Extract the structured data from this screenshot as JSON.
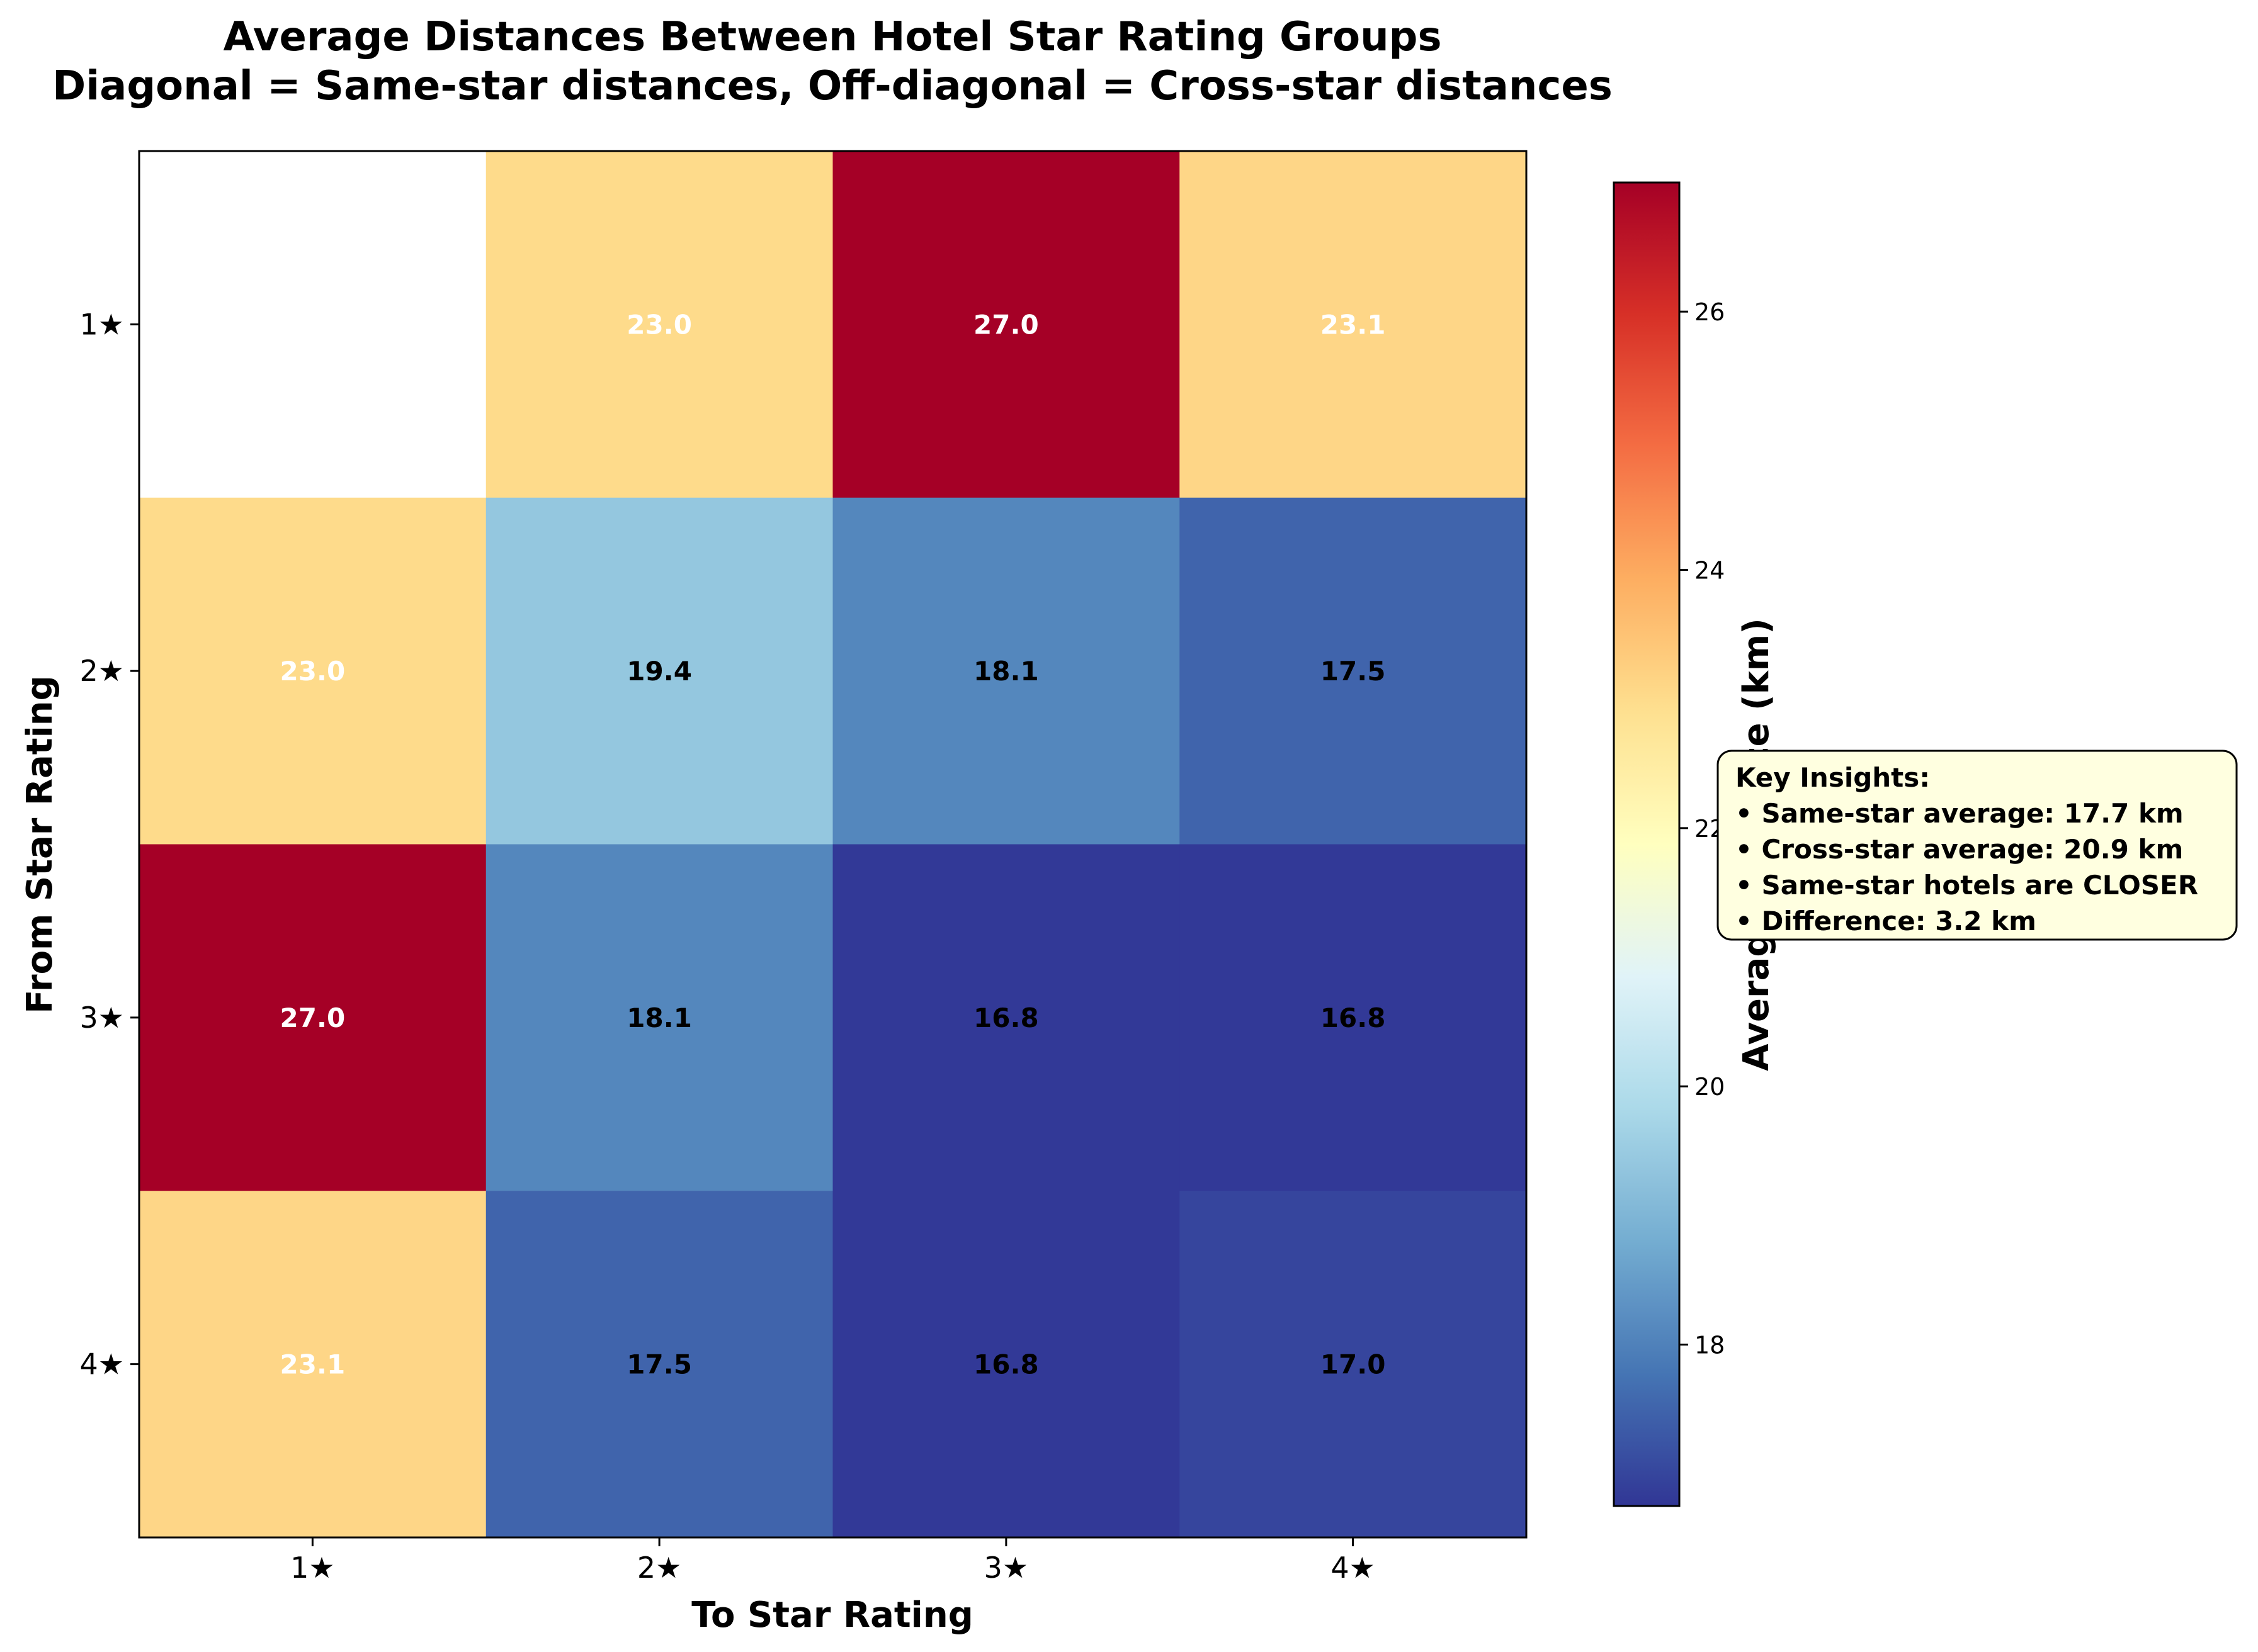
{
  "chart_data": {
    "type": "heatmap",
    "title_line1": "Average Distances Between Hotel Star Rating Groups",
    "title_line2": "Diagonal = Same-star distances, Off-diagonal = Cross-star distances",
    "xlabel": "To Star Rating",
    "ylabel": "From Star Rating",
    "x_categories": [
      "1★",
      "2★",
      "3★",
      "4★"
    ],
    "y_categories": [
      "1★",
      "2★",
      "3★",
      "4★"
    ],
    "values": [
      [
        null,
        23.0,
        27.0,
        23.1
      ],
      [
        23.0,
        19.4,
        18.1,
        17.5
      ],
      [
        27.0,
        18.1,
        16.8,
        16.8
      ],
      [
        23.1,
        17.5,
        16.8,
        17.0
      ]
    ],
    "value_labels": [
      [
        "",
        "23.0",
        "27.0",
        "23.1"
      ],
      [
        "23.0",
        "19.4",
        "18.1",
        "17.5"
      ],
      [
        "27.0",
        "18.1",
        "16.8",
        "16.8"
      ],
      [
        "23.1",
        "17.5",
        "16.8",
        "17.0"
      ]
    ],
    "colormap": "RdYlBu_r",
    "vmin": 16.75,
    "vmax": 27.0,
    "colorbar": {
      "label": "Average Distance (km)",
      "ticks": [
        18,
        20,
        22,
        24,
        26
      ],
      "tick_labels": [
        "18",
        "20",
        "22",
        "24",
        "26"
      ]
    },
    "annotation": {
      "lines": [
        "Key Insights:",
        "• Same-star average: 17.7 km",
        "• Cross-star average: 20.9 km",
        "• Same-star hotels are CLOSER",
        "• Difference: 3.2 km"
      ],
      "background": "#ffffe0"
    }
  }
}
